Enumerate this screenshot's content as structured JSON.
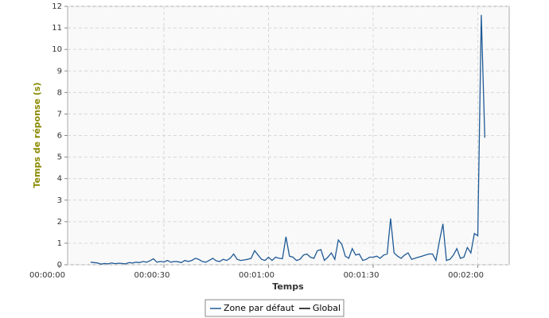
{
  "chart_data": {
    "type": "line",
    "x_label": "Temps",
    "y_label": "Temps de réponse (s)",
    "x": [
      9,
      10,
      11,
      12,
      13,
      14,
      15,
      16,
      17,
      18,
      19,
      20,
      21,
      22,
      23,
      24,
      25,
      26,
      27,
      28,
      29,
      30,
      31,
      32,
      33,
      34,
      35,
      36,
      37,
      38,
      39,
      40,
      41,
      42,
      43,
      44,
      45,
      46,
      47,
      48,
      49,
      50,
      51,
      52,
      53,
      54,
      55,
      56,
      57,
      58,
      59,
      60,
      61,
      62,
      63,
      64,
      65,
      66,
      67,
      68,
      69,
      70,
      71,
      72,
      73,
      74,
      75,
      76,
      77,
      78,
      79,
      80,
      81,
      82,
      83,
      84,
      85,
      86,
      87,
      88,
      89,
      90,
      91,
      92,
      93,
      94,
      95,
      96,
      97,
      98,
      99,
      100,
      101,
      102,
      103,
      104,
      105,
      106,
      107,
      108,
      109,
      110,
      111,
      112,
      113,
      114,
      115,
      116,
      117,
      118,
      119,
      120,
      121,
      122
    ],
    "series": [
      {
        "name": "Zone par défaut",
        "color": "#1f5a96",
        "values": [
          0.12,
          0.1,
          0.08,
          0.03,
          0.06,
          0.04,
          0.08,
          0.05,
          0.07,
          0.06,
          0.04,
          0.1,
          0.08,
          0.12,
          0.1,
          0.15,
          0.12,
          0.18,
          0.28,
          0.12,
          0.15,
          0.13,
          0.2,
          0.12,
          0.15,
          0.14,
          0.1,
          0.2,
          0.15,
          0.2,
          0.3,
          0.25,
          0.15,
          0.12,
          0.2,
          0.3,
          0.18,
          0.15,
          0.25,
          0.2,
          0.3,
          0.5,
          0.25,
          0.2,
          0.22,
          0.25,
          0.3,
          0.65,
          0.45,
          0.25,
          0.2,
          0.35,
          0.2,
          0.35,
          0.3,
          0.28,
          1.3,
          0.4,
          0.35,
          0.2,
          0.25,
          0.45,
          0.5,
          0.35,
          0.3,
          0.65,
          0.7,
          0.2,
          0.35,
          0.55,
          0.25,
          1.15,
          0.95,
          0.4,
          0.3,
          0.75,
          0.45,
          0.5,
          0.2,
          0.25,
          0.35,
          0.35,
          0.4,
          0.3,
          0.45,
          0.5,
          2.15,
          0.55,
          0.4,
          0.3,
          0.45,
          0.55,
          0.25,
          0.3,
          0.35,
          0.4,
          0.45,
          0.5,
          0.5,
          0.2,
          1.1,
          1.9,
          0.2,
          0.25,
          0.45,
          0.75,
          0.3,
          0.35,
          0.8,
          0.55,
          1.45,
          1.35,
          11.6,
          5.9
        ]
      }
    ],
    "legend": [
      {
        "name": "Zone par défaut",
        "color": "#1f5a96"
      },
      {
        "name": "Global",
        "color": "#000000"
      }
    ],
    "xlim": [
      2.4,
      129
    ],
    "xticks": [
      {
        "value": 0,
        "label": "00:00:00"
      },
      {
        "value": 30,
        "label": "00:00:30"
      },
      {
        "value": 60,
        "label": "00:01:00"
      },
      {
        "value": 90,
        "label": "00:01:30"
      },
      {
        "value": 120,
        "label": "00:02:00"
      }
    ],
    "ylim": [
      0,
      12
    ],
    "yticks": [
      0,
      1,
      2,
      3,
      4,
      5,
      6,
      7,
      8,
      9,
      10,
      11,
      12
    ],
    "grid": true
  }
}
